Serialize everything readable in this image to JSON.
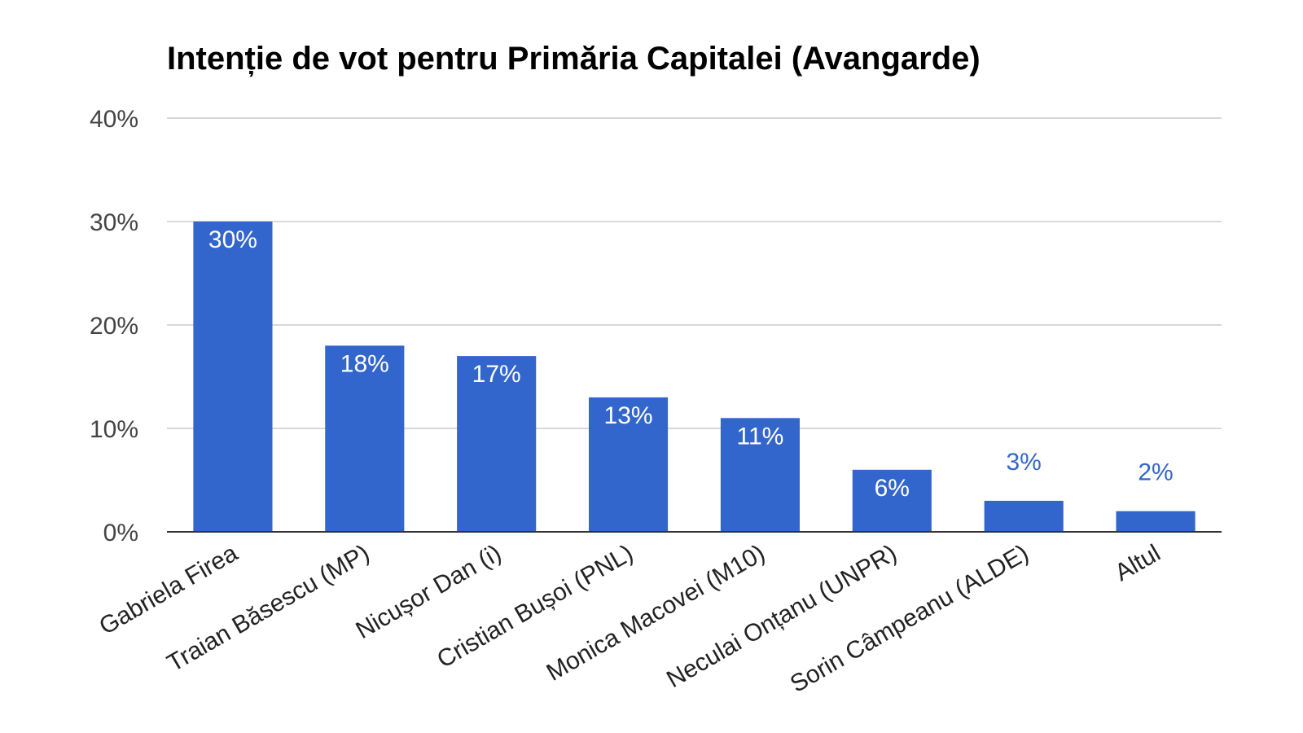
{
  "chart_data": {
    "type": "bar",
    "title": "Intenție de vot pentru Primăria Capitalei (Avangarde)",
    "xlabel": "",
    "ylabel": "",
    "ylim": [
      0,
      40
    ],
    "yticks": [
      0,
      10,
      20,
      30,
      40
    ],
    "ytick_labels": [
      "0%",
      "10%",
      "20%",
      "30%",
      "40%"
    ],
    "grid": true,
    "legend": "none",
    "categories": [
      "Gabriela Firea",
      "Traian Băsescu (MP)",
      "Nicușor Dan (i)",
      "Cristian Bușoi (PNL)",
      "Monica Macovei (M10)",
      "Neculai Onțanu (UNPR)",
      "Sorin Câmpeanu (ALDE)",
      "Altul"
    ],
    "values": [
      30,
      18,
      17,
      13,
      11,
      6,
      3,
      2
    ],
    "data_labels": [
      "30%",
      "18%",
      "17%",
      "13%",
      "11%",
      "6%",
      "3%",
      "2%"
    ],
    "colors": {
      "bar": "#3366cc",
      "label_inside": "#ffffff",
      "label_outside": "#3366cc",
      "grid": "#cccccc",
      "axis": "#333333"
    }
  }
}
